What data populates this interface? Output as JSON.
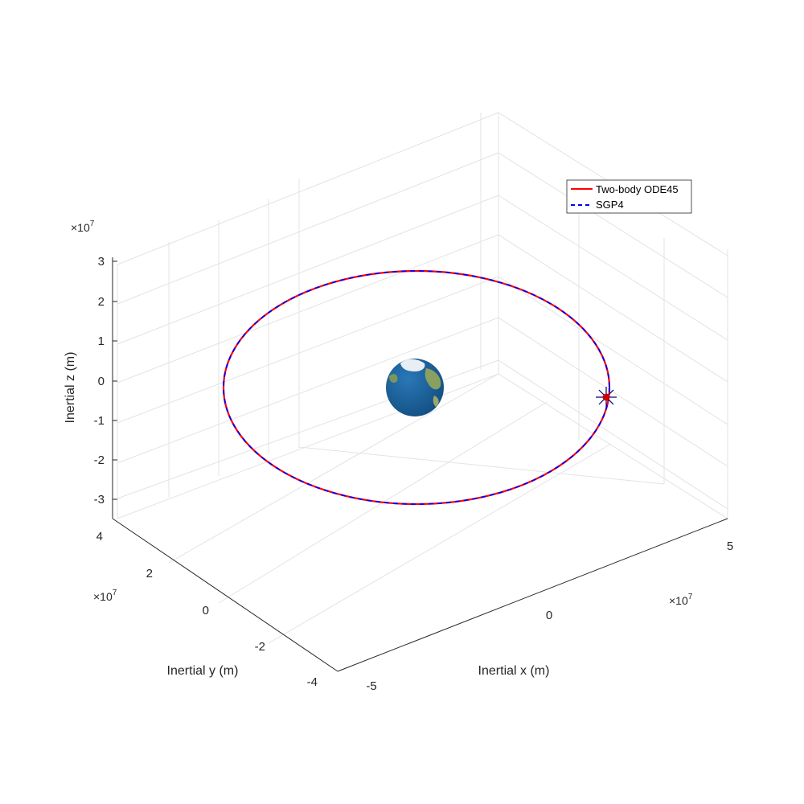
{
  "chart_data": {
    "type": "line3d",
    "title": "",
    "xlabel": "Inertial x (m)",
    "ylabel": "Inertial y (m)",
    "zlabel": "Inertial z (m)",
    "x_ticks": [
      "-5",
      "0",
      "5"
    ],
    "y_ticks": [
      "-4",
      "-2",
      "0",
      "2",
      "4"
    ],
    "z_ticks": [
      "-3",
      "-2",
      "-1",
      "0",
      "1",
      "2",
      "3"
    ],
    "exponent_base": "×10",
    "exponent_power": "7",
    "xlim": [
      -5,
      5
    ],
    "ylim": [
      -4,
      4
    ],
    "zlim": [
      -3.5,
      3.5
    ],
    "grid": true,
    "legend_position": "top-right",
    "series": [
      {
        "name": "Two-body ODE45",
        "color": "#ff0000",
        "style": "solid"
      },
      {
        "name": "SGP4",
        "color": "#0000ff",
        "style": "dashed"
      }
    ],
    "marker": {
      "symbol": "asterisk",
      "color": "#00007f"
    },
    "central_body": "earth-globe"
  },
  "colors": {
    "axis": "#262626",
    "grid": "#e3e3e3",
    "ocean": "#1a5e99",
    "land": "#8aa060"
  }
}
